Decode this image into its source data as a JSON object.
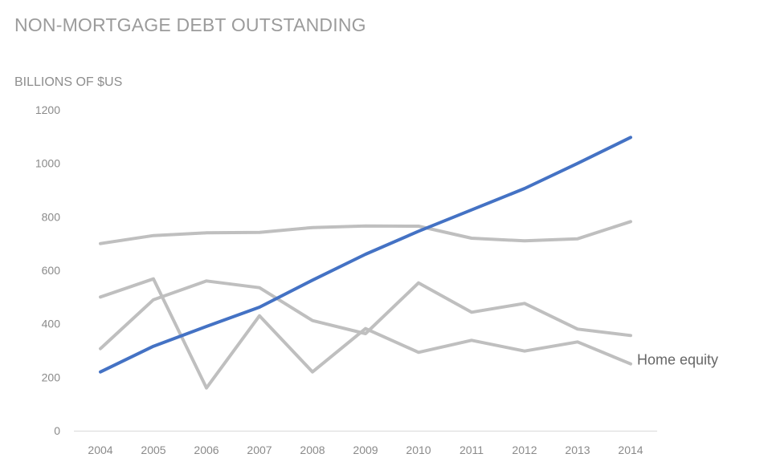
{
  "chart_data": {
    "type": "line",
    "title": "NON-MORTGAGE DEBT OUTSTANDING",
    "ylabel": "BILLIONS OF $US",
    "xlabel": "",
    "categories": [
      "2004",
      "2005",
      "2006",
      "2007",
      "2008",
      "2009",
      "2010",
      "2011",
      "2012",
      "2013",
      "2014"
    ],
    "ylim": [
      0,
      1200
    ],
    "yticks": [
      0,
      200,
      400,
      600,
      800,
      1000,
      1200
    ],
    "grid": false,
    "series": [
      {
        "values": [
          700,
          730,
          740,
          742,
          760,
          766,
          765,
          720,
          710,
          718,
          782
        ],
        "color": "#bfbfbf"
      },
      {
        "values": [
          500,
          568,
          160,
          430,
          220,
          382,
          293,
          338,
          298,
          332,
          250
        ],
        "color": "#bfbfbf"
      },
      {
        "name": "Home equity",
        "label_series": true,
        "values": [
          307,
          490,
          560,
          535,
          412,
          363,
          553,
          443,
          476,
          380,
          356
        ],
        "color": "#bfbfbf"
      },
      {
        "values": [
          220,
          316,
          390,
          462,
          563,
          660,
          746,
          826,
          906,
          1000,
          1097
        ],
        "color": "#4472c4"
      }
    ],
    "series_label_text": "Home equity"
  }
}
